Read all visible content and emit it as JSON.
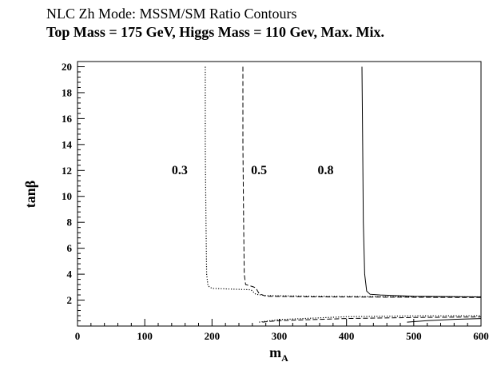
{
  "chart_data": {
    "type": "line",
    "title": "NLC Zh Mode: MSSM/SM Ratio Contours",
    "subtitle": "Top Mass = 175 GeV, Higgs Mass = 110 Gev, Max. Mix.",
    "xlabel": "m_A",
    "ylabel": "tanβ",
    "xlim": [
      0,
      600
    ],
    "ylim": [
      0,
      20.4
    ],
    "x_ticks": [
      0,
      100,
      200,
      300,
      400,
      500,
      600
    ],
    "y_ticks": [
      2,
      4,
      6,
      8,
      10,
      12,
      14,
      16,
      18,
      20
    ],
    "grid": false,
    "legend": "none",
    "series": [
      {
        "label": "0.3",
        "style": "dotted",
        "segments": [
          [
            [
              190,
              20
            ],
            [
              190,
              14
            ],
            [
              191,
              8
            ],
            [
              192,
              4
            ],
            [
              194,
              3.1
            ],
            [
              200,
              2.9
            ],
            [
              230,
              2.85
            ],
            [
              258,
              2.8
            ],
            [
              265,
              2.45
            ],
            [
              280,
              2.35
            ],
            [
              350,
              2.3
            ],
            [
              450,
              2.27
            ],
            [
              600,
              2.25
            ]
          ],
          [
            [
              270,
              0.3
            ],
            [
              300,
              0.5
            ],
            [
              400,
              0.72
            ],
            [
              500,
              0.78
            ],
            [
              600,
              0.8
            ]
          ]
        ]
      },
      {
        "label": "0.5",
        "style": "dashed",
        "segments": [
          [
            [
              246,
              20
            ],
            [
              246,
              14
            ],
            [
              247,
              8
            ],
            [
              248,
              4
            ],
            [
              250,
              3.2
            ],
            [
              260,
              3.05
            ],
            [
              265,
              2.95
            ],
            [
              270,
              2.5
            ],
            [
              280,
              2.3
            ],
            [
              350,
              2.25
            ],
            [
              450,
              2.23
            ],
            [
              600,
              2.2
            ]
          ],
          [
            [
              275,
              0.3
            ],
            [
              300,
              0.42
            ],
            [
              400,
              0.58
            ],
            [
              500,
              0.66
            ],
            [
              600,
              0.7
            ]
          ]
        ]
      },
      {
        "label": "0.8",
        "style": "solid",
        "segments": [
          [
            [
              423,
              20
            ],
            [
              424,
              14
            ],
            [
              425,
              8
            ],
            [
              427,
              4
            ],
            [
              430,
              2.7
            ],
            [
              435,
              2.45
            ],
            [
              450,
              2.4
            ],
            [
              500,
              2.3
            ],
            [
              600,
              2.25
            ]
          ],
          [
            [
              490,
              0.3
            ],
            [
              520,
              0.42
            ],
            [
              560,
              0.52
            ],
            [
              600,
              0.58
            ]
          ]
        ]
      }
    ],
    "annotations": [
      {
        "text": "0.3",
        "x": 140,
        "y": 11.7
      },
      {
        "text": "0.5",
        "x": 258,
        "y": 11.7
      },
      {
        "text": "0.8",
        "x": 357,
        "y": 11.7
      }
    ]
  }
}
